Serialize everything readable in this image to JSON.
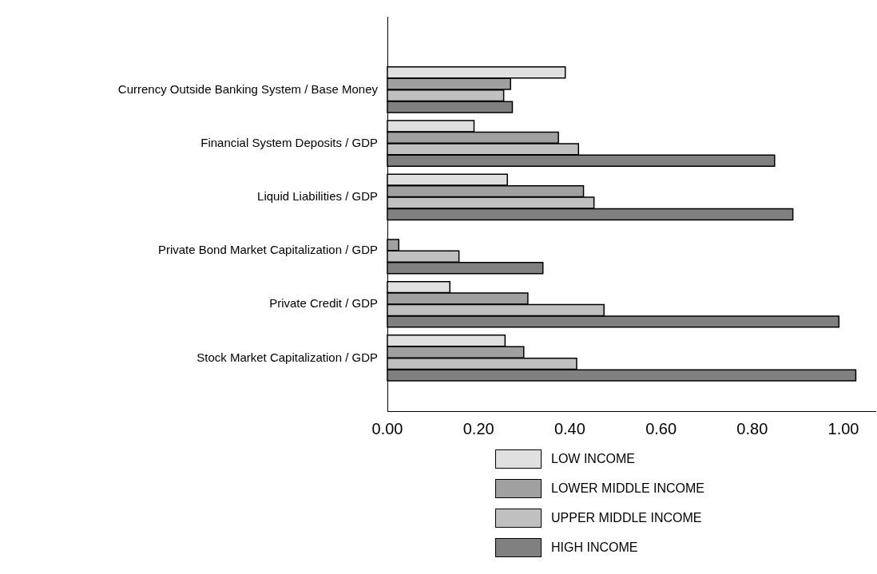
{
  "chart_data": {
    "type": "bar",
    "orientation": "horizontal",
    "categories": [
      "Currency Outside Banking System / Base Money",
      "Financial System Deposits / GDP",
      "Liquid Liabilities / GDP",
      "Private Bond Market Capitalization / GDP",
      "Private Credit / GDP",
      "Stock Market Capitalization / GDP"
    ],
    "series": [
      {
        "name": "LOW INCOME",
        "color": "#e0e0e0",
        "values": [
          0.39,
          0.19,
          0.263,
          null,
          0.137,
          0.258
        ]
      },
      {
        "name": "LOWER MIDDLE INCOME",
        "color": "#a0a0a0",
        "values": [
          0.27,
          0.375,
          0.43,
          0.025,
          0.308,
          0.299
        ]
      },
      {
        "name": "UPPER MIDDLE INCOME",
        "color": "#c0c0c0",
        "values": [
          0.255,
          0.419,
          0.453,
          0.157,
          0.475,
          0.415
        ]
      },
      {
        "name": "HIGH INCOME",
        "color": "#808080",
        "values": [
          0.274,
          0.849,
          0.889,
          0.341,
          0.99,
          1.027
        ]
      }
    ],
    "xlim": [
      0,
      1.07
    ],
    "xticks": [
      {
        "value": 0,
        "label": "0.00"
      },
      {
        "value": 0.2,
        "label": "0.20"
      },
      {
        "value": 0.4,
        "label": "0.40"
      },
      {
        "value": 0.6,
        "label": "0.60"
      },
      {
        "value": 0.8,
        "label": "0.80"
      },
      {
        "value": 1,
        "label": "1.00"
      }
    ],
    "grid": false,
    "legend": "bottom"
  }
}
